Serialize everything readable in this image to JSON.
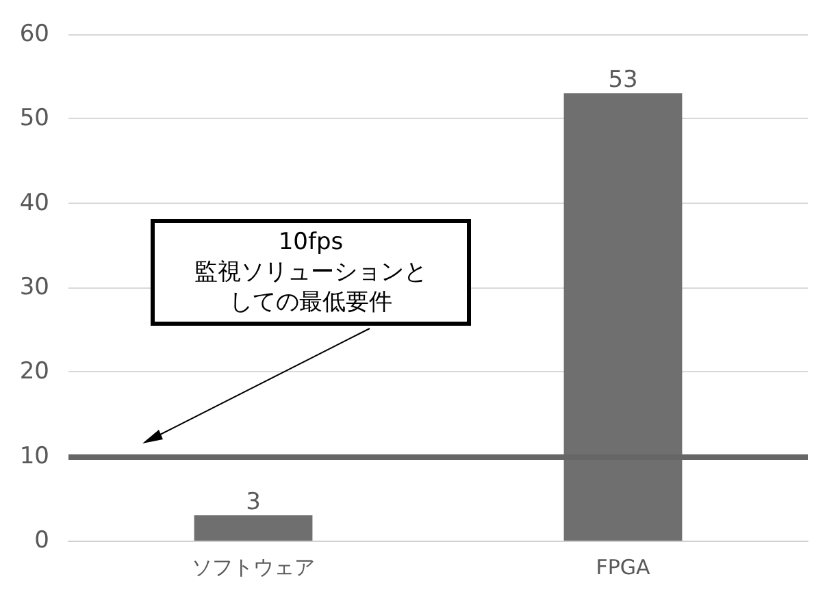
{
  "chart_data": {
    "type": "bar",
    "categories": [
      "ソフトウェア",
      "FPGA"
    ],
    "values": [
      3,
      53
    ],
    "color": "#6f6f6f",
    "ylim": [
      0,
      60
    ],
    "yticks": [
      0,
      10,
      20,
      30,
      40,
      50,
      60
    ],
    "grid": "y",
    "data_labels": true,
    "ref_lines": [
      {
        "axis": "y",
        "value": 10,
        "color": "#666666"
      }
    ],
    "annotations": [
      "10fps",
      "監視ソリューションとしての最低要件"
    ]
  }
}
